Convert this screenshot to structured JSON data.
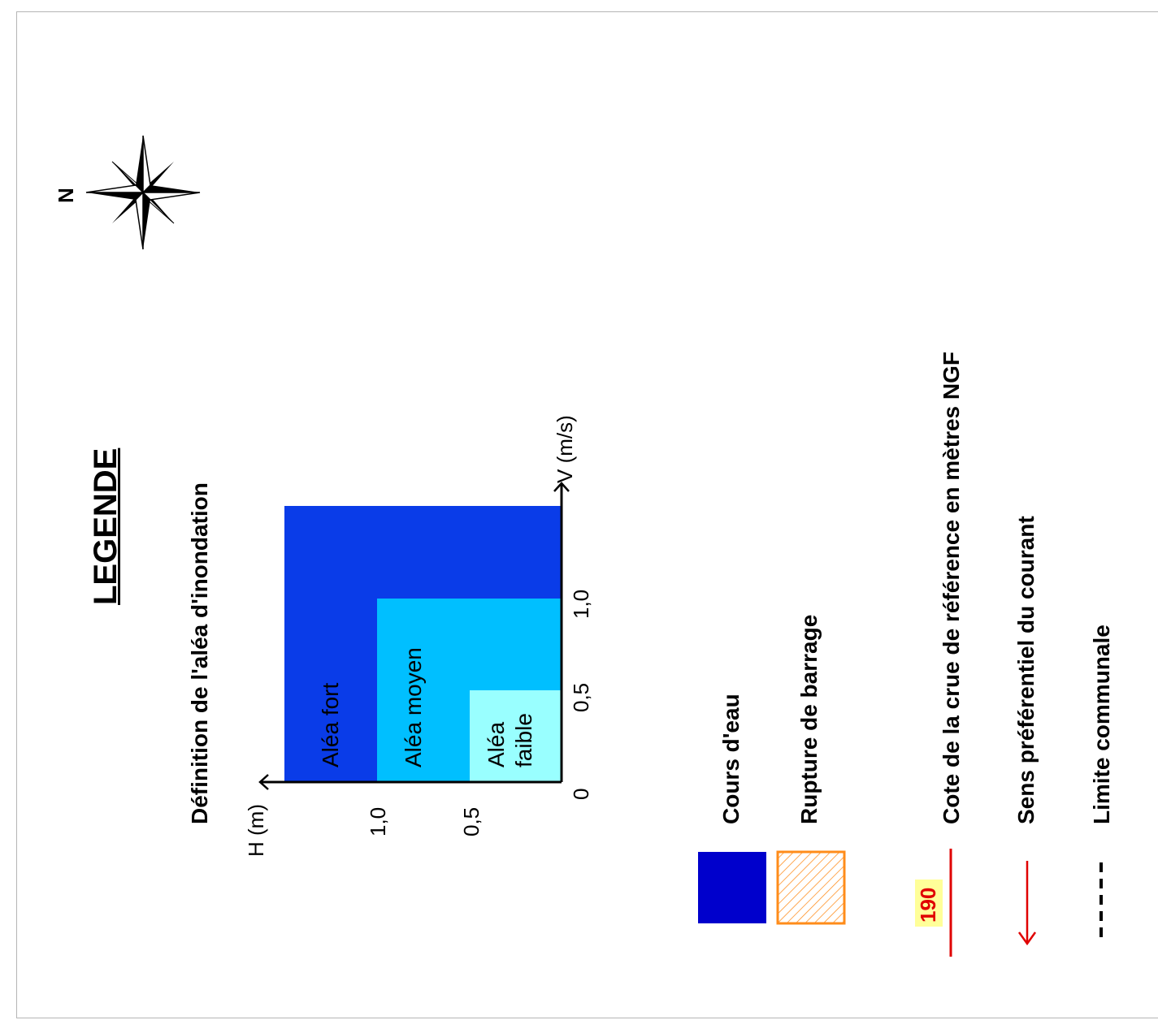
{
  "page": {
    "title": "LEGENDE",
    "compass_label": "N",
    "compass_icon": "compass-rose-icon"
  },
  "hazard_chart": {
    "heading": "Définition de l'aléa d'inondation",
    "y_axis_label": "H (m)",
    "x_axis_label": "V (m/s)",
    "y_ticks": [
      "1,0",
      "0,5"
    ],
    "x_ticks": [
      "0",
      "0,5",
      "1,0"
    ],
    "zones": [
      {
        "label": "Aléa fort",
        "color": "#0a3ce8"
      },
      {
        "label": "Aléa moyen",
        "color": "#00bfff"
      },
      {
        "label_line1": "Aléa",
        "label_line2": "faible",
        "color": "#99ffff"
      }
    ]
  },
  "legend": {
    "items": [
      {
        "label": "Cours d'eau",
        "symbol": "filled-square",
        "color": "#0000cc"
      },
      {
        "label": "Rupture de barrage",
        "symbol": "hatched-square",
        "color": "#ff8c1a"
      },
      {
        "label": "Cote de la crue de référence en mètres NGF",
        "symbol": "red-line-with-number",
        "value": "190",
        "color": "#e00000",
        "badge_color": "#ffff99"
      },
      {
        "label": "Sens préférentiel du courant",
        "symbol": "red-arrow",
        "color": "#e00000"
      },
      {
        "label": "Limite communale",
        "symbol": "dashed-line",
        "color": "#000000"
      }
    ]
  }
}
